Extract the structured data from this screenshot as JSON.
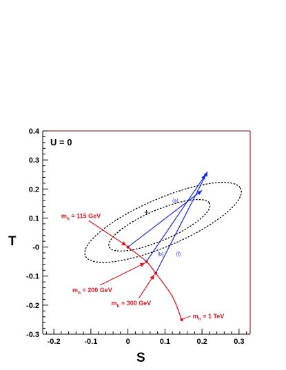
{
  "chart_data": {
    "type": "scatter",
    "xlabel": "S",
    "ylabel": "T",
    "xlim": [
      -0.23,
      0.33
    ],
    "ylim": [
      -0.3,
      0.4
    ],
    "x_ticks": [
      -0.2,
      -0.1,
      0,
      0.1,
      0.2,
      0.3
    ],
    "x_tick_labels": [
      "-0.2",
      "-0.1",
      "0",
      "0.1",
      "0.2",
      "0.3"
    ],
    "y_ticks": [
      -0.3,
      -0.2,
      -0.1,
      0,
      0.1,
      0.2,
      0.3,
      0.4
    ],
    "y_tick_labels": [
      "-0.3",
      "-0.2",
      "-0.1",
      "-0",
      "0.1",
      "0.2",
      "0.3",
      "0.4"
    ],
    "grid": false,
    "annotation": "U = 0",
    "central_value": {
      "x": 0.05,
      "y": 0.12
    },
    "contours": [
      {
        "center": [
          0.085,
          0.075
        ],
        "semi_major": 0.155,
        "semi_minor": 0.05,
        "angle_deg": 30
      },
      {
        "center": [
          0.095,
          0.085
        ],
        "semi_major": 0.24,
        "semi_minor": 0.078,
        "angle_deg": 30
      }
    ],
    "higgs_curve": {
      "color": "#e0141e",
      "points": [
        [
          0.0,
          0.0
        ],
        [
          0.05,
          -0.05
        ],
        [
          0.075,
          -0.09
        ],
        [
          0.12,
          -0.17
        ],
        [
          0.145,
          -0.25
        ]
      ],
      "labeled_points": [
        {
          "label": "m",
          "sub": "h",
          "rest": " = 115 GeV",
          "x": 0.0,
          "y": 0.0,
          "text_x": -0.18,
          "text_y": 0.1
        },
        {
          "label": "m",
          "sub": "h",
          "rest": " = 200 GeV",
          "x": 0.05,
          "y": -0.05,
          "text_x": -0.15,
          "text_y": -0.155
        },
        {
          "label": "m",
          "sub": "h",
          "rest": " = 300 GeV",
          "x": 0.075,
          "y": -0.09,
          "text_x": -0.045,
          "text_y": -0.2
        },
        {
          "label": "m",
          "sub": "h",
          "rest": " = 1 TeV",
          "x": 0.145,
          "y": -0.25,
          "text_x": 0.175,
          "text_y": -0.245
        }
      ]
    },
    "arrows": [
      {
        "label": "(a)",
        "from": [
          0.0,
          0.0
        ],
        "to": [
          0.2,
          0.195
        ],
        "label_pos": [
          0.12,
          0.155
        ]
      },
      {
        "label": "(b)",
        "from": [
          0.05,
          -0.05
        ],
        "to": [
          0.21,
          0.25
        ],
        "label_pos": [
          0.08,
          -0.03
        ]
      },
      {
        "label": "(f)",
        "from": [
          0.075,
          -0.09
        ],
        "to": [
          0.215,
          0.26
        ],
        "label_pos": [
          0.13,
          -0.03
        ]
      }
    ],
    "arrow_color": "#1428e0"
  }
}
